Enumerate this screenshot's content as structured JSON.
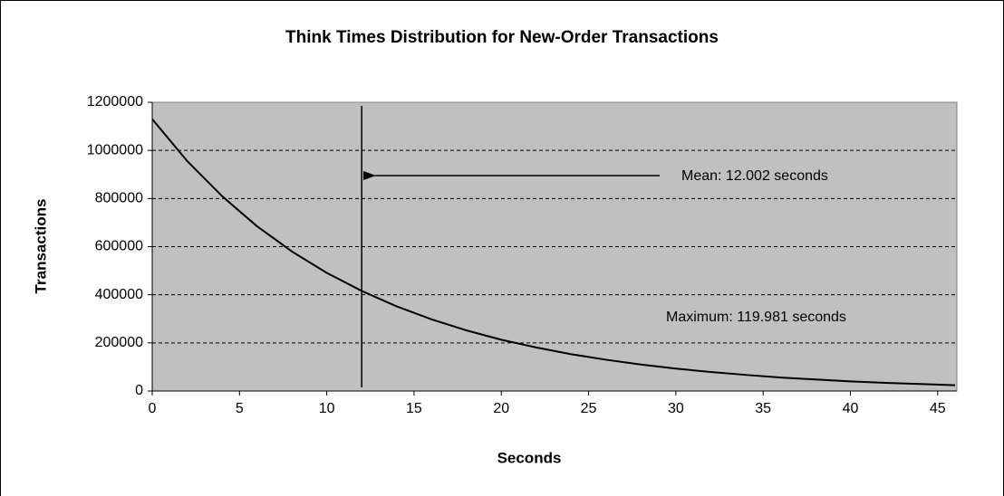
{
  "chart_data": {
    "type": "line",
    "title": "Think Times Distribution for New-Order Transactions",
    "x_label": "Seconds",
    "y_label": "Transactions",
    "x": [
      0,
      2,
      4,
      6,
      8,
      10,
      12,
      14,
      16,
      18,
      20,
      22,
      24,
      26,
      28,
      30,
      32,
      34,
      36,
      38,
      40,
      42,
      44,
      46
    ],
    "series": [
      {
        "name": "Transactions",
        "color": "#000000",
        "values": [
          1130000,
          956000,
          810000,
          685000,
          580000,
          491000,
          416000,
          352000,
          298000,
          252000,
          213000,
          181000,
          153000,
          130000,
          110000,
          93000,
          79000,
          67000,
          56000,
          48000,
          40000,
          34000,
          29000,
          24000
        ]
      }
    ],
    "xlim": [
      0,
      46.1
    ],
    "xticks": [
      0,
      5,
      10,
      15,
      20,
      25,
      30,
      35,
      40,
      45
    ],
    "ylim": [
      0,
      1200000
    ],
    "yticks": [
      0,
      200000,
      400000,
      600000,
      800000,
      1000000,
      1200000
    ],
    "grid": true,
    "plot_background": "#c0c0c0",
    "mean_line": 12.002,
    "annotations": [
      "Mean: 12.002 seconds",
      "Maximum: 119.981 seconds"
    ]
  }
}
